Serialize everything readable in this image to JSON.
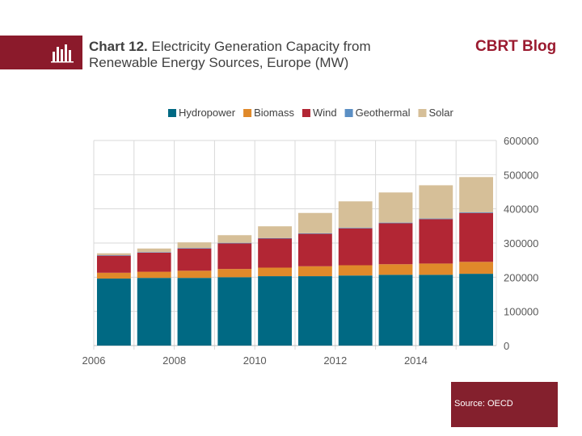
{
  "header": {
    "title_bold": "Chart 12.",
    "title_rest": "Electricity Generation Capacity from Renewable Energy Sources, Europe (MW)",
    "brand": "CBRT Blog",
    "icon": "bar-chart-icon"
  },
  "footer": {
    "source": "Source: OECD"
  },
  "colors": {
    "header_band": "#8b1a2b",
    "brand": "#9b1b30",
    "Hydropower": "#006983",
    "Biomass": "#e0892a",
    "Wind": "#b22634",
    "Geothermal": "#5b8fc4",
    "Solar": "#d6bf98"
  },
  "chart_data": {
    "type": "bar",
    "stacked": true,
    "categories": [
      "2006",
      "2007",
      "2008",
      "2009",
      "2010",
      "2011",
      "2012",
      "2013",
      "2014",
      "2015"
    ],
    "x_tick_labels": [
      "2006",
      "",
      "2008",
      "",
      "2010",
      "",
      "2012",
      "",
      "2014",
      ""
    ],
    "series": [
      {
        "name": "Hydropower",
        "values": [
          196000,
          198000,
          198000,
          200000,
          203000,
          203000,
          205000,
          207000,
          207000,
          210000
        ]
      },
      {
        "name": "Biomass",
        "values": [
          17000,
          18000,
          21000,
          24000,
          25000,
          29000,
          30000,
          31000,
          33000,
          35000
        ]
      },
      {
        "name": "Wind",
        "values": [
          50000,
          56000,
          65000,
          75000,
          85000,
          95000,
          108000,
          120000,
          130000,
          143000
        ]
      },
      {
        "name": "Geothermal",
        "values": [
          1500,
          1500,
          1600,
          1600,
          1600,
          1700,
          1700,
          1800,
          1800,
          1900
        ]
      },
      {
        "name": "Solar",
        "values": [
          5500,
          10500,
          16400,
          22400,
          34400,
          59300,
          77300,
          88200,
          97200,
          103100
        ]
      }
    ],
    "title": "",
    "xlabel": "",
    "ylabel": "",
    "ylim": [
      0,
      600000
    ],
    "y_ticks": [
      0,
      100000,
      200000,
      300000,
      400000,
      500000,
      600000
    ],
    "y_axis_side": "right",
    "grid": true,
    "legend_position": "top"
  }
}
